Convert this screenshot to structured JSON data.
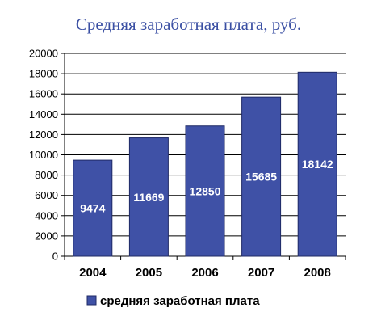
{
  "chart_data": {
    "type": "bar",
    "title": "Средняя заработная плата, руб.",
    "categories": [
      "2004",
      "2005",
      "2006",
      "2007",
      "2008"
    ],
    "series": [
      {
        "name": "средняя заработная плата",
        "values": [
          9474,
          11669,
          12850,
          15685,
          18142
        ]
      }
    ],
    "data_labels": [
      "9474",
      "11669",
      "12850",
      "15685",
      "18142"
    ],
    "yticks": [
      0,
      2000,
      4000,
      6000,
      8000,
      10000,
      12000,
      14000,
      16000,
      18000,
      20000
    ],
    "ylim": [
      0,
      20000
    ],
    "grid": true,
    "legend": "bottom",
    "xlabel": "",
    "ylabel": "",
    "colors": {
      "bar": "#3f51a6",
      "bar_border": "#1f2a66",
      "title": "#3a4fa3"
    }
  }
}
